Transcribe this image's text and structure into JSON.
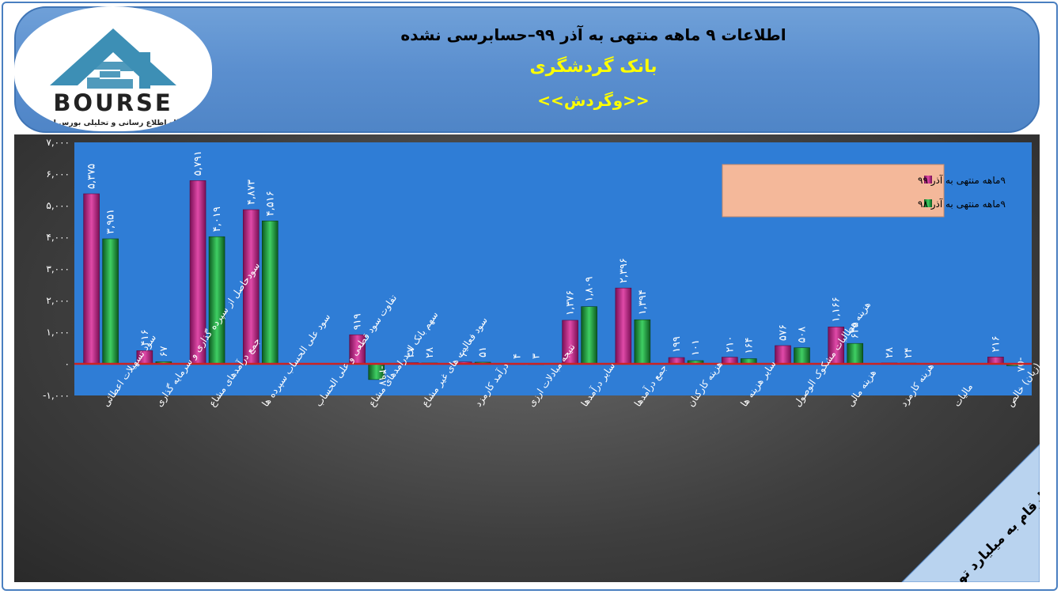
{
  "header": {
    "title": "اطلاعات ۹ ماهه منتهی به آذر ۹۹–حسابرسی نشده",
    "company": "بانک گردشگری",
    "symbol": "<<وگردش>>"
  },
  "logo": {
    "brand": "BOURSE",
    "tagline": "پایگاه اطلاع رسانی و تحلیلی بورس ایران"
  },
  "note": "ارقام به میلیارد تومان",
  "colors": {
    "series1": "#c0288a",
    "series2": "#1f9a3c",
    "plot_bg": "#2f7dd6",
    "zero_line": "#cc2222",
    "legend_bg": "#f4b89a"
  },
  "chart_data": {
    "type": "bar",
    "categories": [
      "سود تسهیلات اعطائی",
      "سودحاصل از سپرده گذاری و سرمایه گذاری",
      "جمع درآمدهای مشاع",
      "سود علی الحساب سپرده ها",
      "تفاوت سود قطعی و علی الحساب",
      "سهم بانک از درامدهای مشاع",
      "سود فعالیت های غیر مشاع",
      "درآمد کارمزد",
      "نتیجه مبادلات ارزی",
      "سایر درآمدها",
      "جمع درآمدها",
      "هزینه کارکنان",
      "سایر هزینه ها",
      "هزینه مطالبات مشکوک الوصول",
      "هزینه مالی",
      "هزینه کارمزد",
      "مالیات",
      "سود (زیان) خالص"
    ],
    "series": [
      {
        "name": "۹ماهه منتهی به آذر ۹۹",
        "values": [
          5375,
          416,
          5791,
          4873,
          null,
          919,
          37,
          60,
          4,
          1376,
          2396,
          199,
          210,
          576,
          1166,
          28,
          null,
          216
        ]
      },
      {
        "name": "۹ماهه منتهی به آذر ۹۸",
        "values": [
          3951,
          67,
          4019,
          4516,
          null,
          -497,
          28,
          51,
          3,
          1809,
          1394,
          101,
          164,
          508,
          645,
          24,
          null,
          -58
        ]
      }
    ],
    "labels": [
      [
        "۵,۳۷۵",
        "۴۱۶",
        "۵,۷۹۱",
        "۴,۸۷۳",
        "",
        "۹۱۹",
        "۳۷",
        "۶۰",
        "۴",
        "۱,۳۷۶",
        "۲,۳۹۶",
        "۱۹۹",
        "۲۱۰",
        "۵۷۶",
        "۱,۱۶۶",
        "۲۸",
        "",
        "۲۱۶"
      ],
      [
        "۳,۹۵۱",
        "۶۷",
        "۴,۰۱۹",
        "۴,۵۱۶",
        "",
        "-۴۹۷",
        "۲۸",
        "۵۱",
        "۳",
        "۱,۸۰۹",
        "۱,۳۹۴",
        "۱۰۱",
        "۱۶۴",
        "۵۰۸",
        "۶۴۵",
        "۲۴",
        "",
        "-۵۸"
      ]
    ],
    "y_ticks": [
      -1000,
      0,
      1000,
      2000,
      3000,
      4000,
      5000,
      6000,
      7000
    ],
    "y_tick_labels": [
      "-۱,۰۰۰",
      "۰",
      "۱,۰۰۰",
      "۲,۰۰۰",
      "۳,۰۰۰",
      "۴,۰۰۰",
      "۵,۰۰۰",
      "۶,۰۰۰",
      "۷,۰۰۰"
    ],
    "ylim": [
      -1000,
      7000
    ],
    "legend_position": "top-right"
  }
}
